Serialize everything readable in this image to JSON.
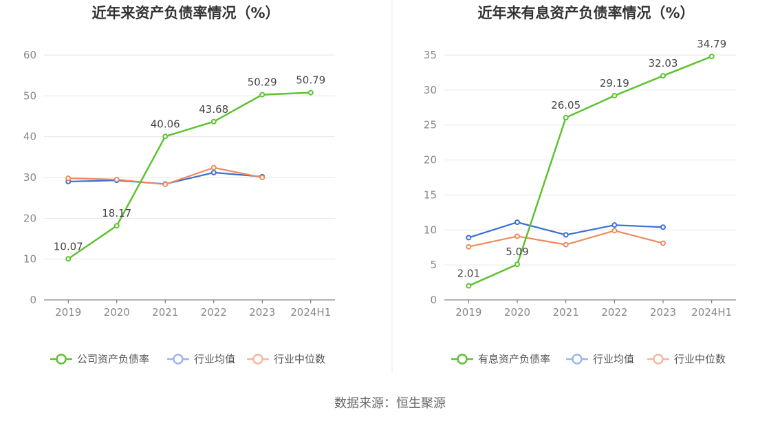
{
  "chart_data": [
    {
      "type": "line",
      "title": "近年来资产负债率情况（%）",
      "categories": [
        "2019",
        "2020",
        "2021",
        "2022",
        "2023",
        "2024H1"
      ],
      "ylim": [
        0,
        60
      ],
      "yticks": [
        0,
        10,
        20,
        30,
        40,
        50,
        60
      ],
      "grid": true,
      "legend_position": "bottom",
      "series": [
        {
          "name": "公司资产负债率",
          "color": "#5cc22e",
          "values": [
            10.07,
            18.17,
            40.06,
            43.68,
            50.29,
            50.79
          ],
          "labels": [
            "10.07",
            "18.17",
            "40.06",
            "43.68",
            "50.29",
            "50.79"
          ]
        },
        {
          "name": "行业均值",
          "color": "#3a6fd6",
          "values": [
            29.0,
            29.3,
            28.4,
            31.2,
            30.2,
            null
          ]
        },
        {
          "name": "行业中位数",
          "color": "#ee8a5f",
          "values": [
            29.8,
            29.5,
            28.3,
            32.4,
            30.0,
            null
          ]
        }
      ]
    },
    {
      "type": "line",
      "title": "近年来有息资产负债率情况（%）",
      "categories": [
        "2019",
        "2020",
        "2021",
        "2022",
        "2023",
        "2024H1"
      ],
      "ylim": [
        0,
        35
      ],
      "yticks": [
        0,
        5,
        10,
        15,
        20,
        25,
        30,
        35
      ],
      "grid": true,
      "legend_position": "bottom",
      "series": [
        {
          "name": "有息资产负债率",
          "color": "#5cc22e",
          "values": [
            2.01,
            5.09,
            26.05,
            29.19,
            32.03,
            34.79
          ],
          "labels": [
            "2.01",
            "5.09",
            "26.05",
            "29.19",
            "32.03",
            "34.79"
          ]
        },
        {
          "name": "行业均值",
          "color": "#3a6fd6",
          "values": [
            8.9,
            11.1,
            9.3,
            10.7,
            10.4,
            null
          ]
        },
        {
          "name": "行业中位数",
          "color": "#ee8a5f",
          "values": [
            7.6,
            9.1,
            7.9,
            9.9,
            8.1,
            null
          ]
        }
      ]
    }
  ],
  "footer": {
    "source": "数据来源：恒生聚源"
  }
}
